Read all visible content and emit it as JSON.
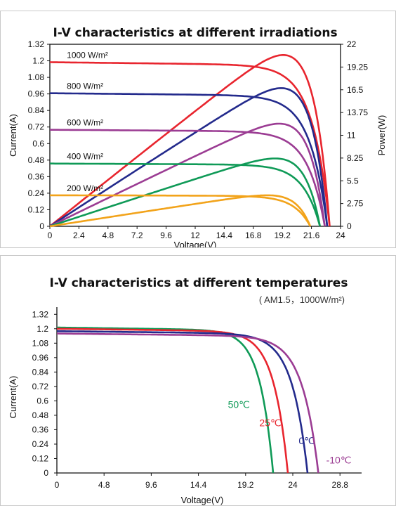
{
  "chart_data": [
    {
      "type": "line",
      "title": "I-V characteristics at different irradiations",
      "xlabel": "Voltage(V)",
      "ylabel": "Current(A)",
      "y2label": "Power(W)",
      "xlim": [
        0,
        24
      ],
      "ylim": [
        0,
        1.32
      ],
      "y2lim": [
        0,
        22
      ],
      "xticks": [
        "0",
        "2.4",
        "4.8",
        "7.2",
        "9.6",
        "12",
        "14.4",
        "16.8",
        "19.2",
        "21.6",
        "24"
      ],
      "yticks": [
        "0",
        "0.12",
        "0.24",
        "0.36",
        "0.48",
        "0.6",
        "0.72",
        "0.84",
        "0.96",
        "1.08",
        "1.2",
        "1.32"
      ],
      "y2ticks": [
        "0",
        "2.75",
        "5.5",
        "8.25",
        "11",
        "13.75",
        "16.5",
        "19.25",
        "22"
      ],
      "grid": false,
      "series": [
        {
          "name": "1000 W/m²",
          "color": "#e8252e",
          "isc": 1.19,
          "voc": 23.1,
          "pmax": 20.7,
          "vmp": 19.0
        },
        {
          "name": "800 W/m²",
          "color": "#232a8c",
          "isc": 0.965,
          "voc": 22.9,
          "pmax": 16.7,
          "vmp": 19.0
        },
        {
          "name": "600 W/m²",
          "color": "#9b3c93",
          "isc": 0.7,
          "voc": 22.7,
          "pmax": 12.4,
          "vmp": 18.9
        },
        {
          "name": "400 W/m²",
          "color": "#0f9a57",
          "isc": 0.455,
          "voc": 22.3,
          "pmax": 8.2,
          "vmp": 18.8
        },
        {
          "name": "200 W/m²",
          "color": "#f2a31a",
          "isc": 0.225,
          "voc": 21.5,
          "pmax": 3.75,
          "vmp": 18.5
        }
      ]
    },
    {
      "type": "line",
      "title": "I-V characteristics at different temperatures",
      "subtitle": "( AM1.5，1000W/m²)",
      "xlabel": "Voltage(V)",
      "ylabel": "Current(A)",
      "xlim": [
        0,
        31
      ],
      "ylim": [
        0,
        1.38
      ],
      "xticks": [
        "0",
        "4.8",
        "9.6",
        "14.4",
        "19.2",
        "24",
        "28.8"
      ],
      "yticks": [
        "0",
        "0.12",
        "0.24",
        "0.36",
        "0.48",
        "0.6",
        "0.72",
        "0.84",
        "0.96",
        "1.08",
        "1.2",
        "1.32"
      ],
      "grid": false,
      "series": [
        {
          "name": "50℃",
          "color": "#0f9a57",
          "isc": 1.21,
          "voc": 22.0
        },
        {
          "name": "25℃",
          "color": "#e8252e",
          "isc": 1.2,
          "voc": 23.5
        },
        {
          "name": "0℃",
          "color": "#232a8c",
          "isc": 1.18,
          "voc": 25.5
        },
        {
          "name": "-10℃",
          "color": "#9b3c93",
          "isc": 1.16,
          "voc": 26.6
        }
      ]
    }
  ]
}
